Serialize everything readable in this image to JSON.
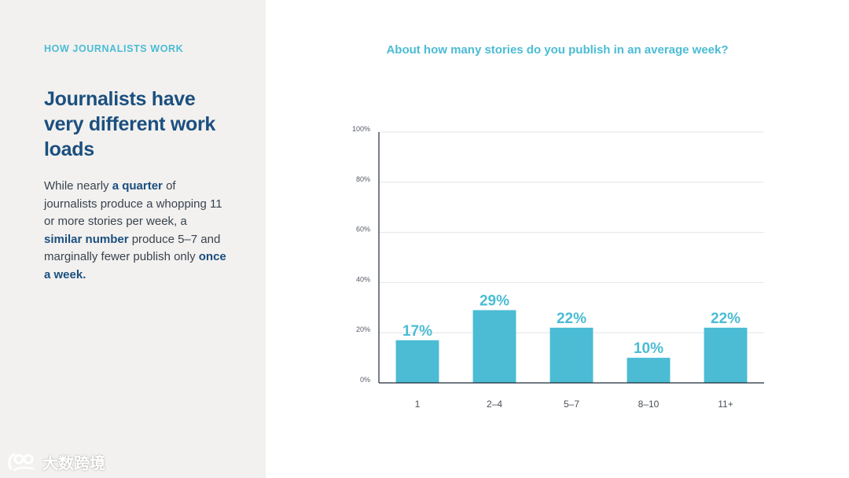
{
  "sidebar": {
    "eyebrow": "HOW JOURNALISTS WORK",
    "headline": "Journalists have very different work loads",
    "body": {
      "t1": "While nearly ",
      "b1": "a quarter",
      "t2": " of journalists produce a whopping 11 or more stories per week, a ",
      "b2": "similar number",
      "t3": " produce 5–7 and marginally fewer publish only ",
      "b3": "once a week."
    }
  },
  "watermark": {
    "text": "大数跨境",
    "icon": "logo-icon"
  },
  "colors": {
    "accent": "#4bbcd4",
    "headline": "#1b4f7f",
    "panel": "#f2f1ef"
  },
  "chart_data": {
    "type": "bar",
    "title": "About how many stories do you publish in an average week?",
    "categories": [
      "1",
      "2–4",
      "5–7",
      "8–10",
      "11+"
    ],
    "values": [
      17,
      29,
      22,
      10,
      22
    ],
    "value_labels": [
      "17%",
      "29%",
      "22%",
      "10%",
      "22%"
    ],
    "yticks": [
      "0%",
      "20%",
      "40%",
      "60%",
      "80%",
      "100%"
    ],
    "ylim": [
      0,
      100
    ],
    "xlabel": "",
    "ylabel": "",
    "grid": true
  }
}
